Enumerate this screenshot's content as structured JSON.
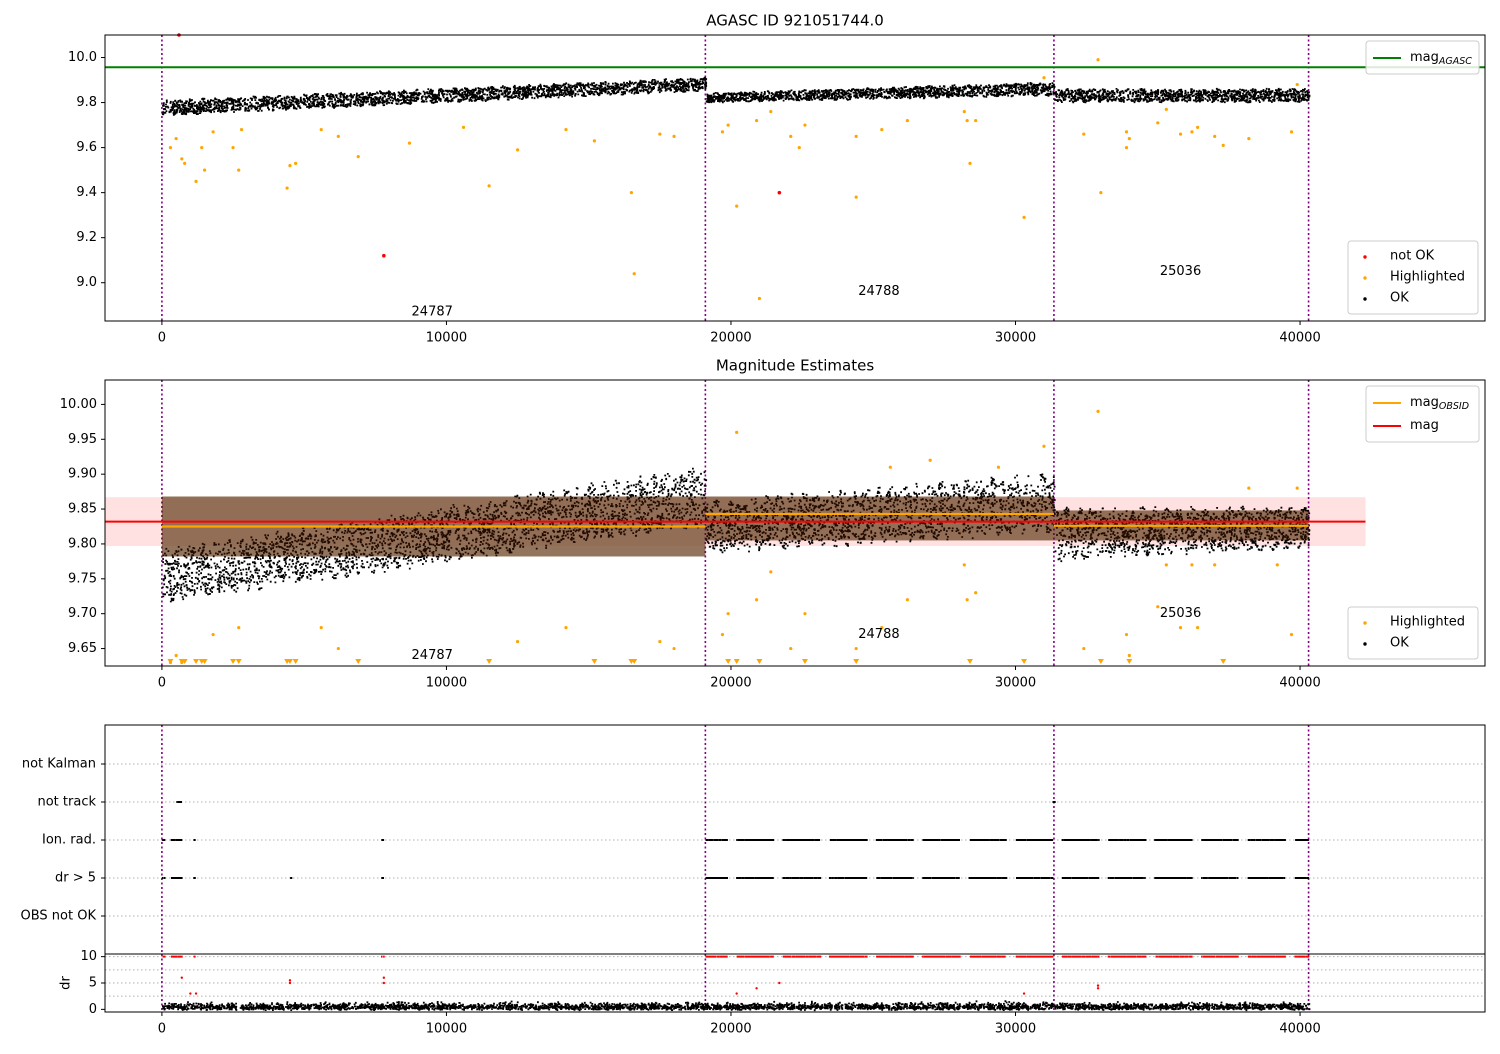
{
  "chart_data": [
    {
      "type": "scatter",
      "title": "AGASC ID 921051744.0",
      "xlim": [
        -2000,
        46500
      ],
      "ylim": [
        8.83,
        10.1
      ],
      "xticks": [
        0,
        10000,
        20000,
        30000,
        40000
      ],
      "xtick_labels": [
        "0",
        "10000",
        "20000",
        "30000",
        "40000"
      ],
      "yticks": [
        9.0,
        9.2,
        9.4,
        9.6,
        9.8,
        10.0
      ],
      "ytick_labels": [
        "9.0",
        "9.2",
        "9.4",
        "9.6",
        "9.8",
        "10.0"
      ],
      "grid": false,
      "obs_boundaries": [
        0,
        19100,
        31350,
        40300
      ],
      "obsid_labels": [
        {
          "text": "24787",
          "x": 9500,
          "y": 8.87
        },
        {
          "text": "24788",
          "x": 25200,
          "y": 8.96
        },
        {
          "text": "25036",
          "x": 35800,
          "y": 9.05
        }
      ],
      "mag_agasc": 9.957,
      "ok_band": [
        {
          "x0": 0,
          "x1": 19100,
          "y0": 9.74,
          "y1": 9.82,
          "y2": 9.85,
          "y3": 9.92
        },
        {
          "x0": 19100,
          "x1": 31350,
          "y0": 9.8,
          "y1": 9.85,
          "y2": 9.83,
          "y3": 9.9
        },
        {
          "x0": 31350,
          "x1": 40300,
          "y0": 9.8,
          "y1": 9.87,
          "y2": 9.8,
          "y3": 9.87
        }
      ],
      "highlighted": [
        [
          300,
          9.6
        ],
        [
          500,
          9.64
        ],
        [
          700,
          9.55
        ],
        [
          800,
          9.53
        ],
        [
          1200,
          9.45
        ],
        [
          1400,
          9.6
        ],
        [
          1500,
          9.5
        ],
        [
          1800,
          9.67
        ],
        [
          2500,
          9.6
        ],
        [
          2700,
          9.5
        ],
        [
          2800,
          9.68
        ],
        [
          4400,
          9.42
        ],
        [
          4500,
          9.52
        ],
        [
          4700,
          9.53
        ],
        [
          5600,
          9.68
        ],
        [
          6200,
          9.65
        ],
        [
          6900,
          9.56
        ],
        [
          8700,
          9.62
        ],
        [
          10600,
          9.69
        ],
        [
          11500,
          9.43
        ],
        [
          12500,
          9.59
        ],
        [
          14200,
          9.68
        ],
        [
          15200,
          9.63
        ],
        [
          16500,
          9.4
        ],
        [
          16600,
          9.04
        ],
        [
          17500,
          9.66
        ],
        [
          18000,
          9.65
        ],
        [
          19700,
          9.67
        ],
        [
          19900,
          9.7
        ],
        [
          20200,
          9.34
        ],
        [
          20900,
          9.72
        ],
        [
          21000,
          8.93
        ],
        [
          21400,
          9.76
        ],
        [
          22100,
          9.65
        ],
        [
          22400,
          9.6
        ],
        [
          22600,
          9.7
        ],
        [
          24400,
          9.38
        ],
        [
          24400,
          9.65
        ],
        [
          25300,
          9.68
        ],
        [
          26200,
          9.72
        ],
        [
          28200,
          9.76
        ],
        [
          28300,
          9.72
        ],
        [
          28400,
          9.53
        ],
        [
          28600,
          9.72
        ],
        [
          30300,
          9.29
        ],
        [
          31000,
          9.91
        ],
        [
          32400,
          9.66
        ],
        [
          32900,
          9.99
        ],
        [
          33000,
          9.4
        ],
        [
          33900,
          9.67
        ],
        [
          33900,
          9.6
        ],
        [
          34000,
          9.64
        ],
        [
          35000,
          9.71
        ],
        [
          35300,
          9.77
        ],
        [
          35800,
          9.66
        ],
        [
          36200,
          9.67
        ],
        [
          36400,
          9.69
        ],
        [
          37000,
          9.65
        ],
        [
          37300,
          9.61
        ],
        [
          38200,
          9.64
        ],
        [
          39700,
          9.67
        ],
        [
          39900,
          9.88
        ]
      ],
      "not_ok": [
        [
          600,
          10.1
        ],
        [
          7800,
          9.12
        ],
        [
          21700,
          9.4
        ]
      ],
      "series": [
        {
          "name": "mag_AGASC",
          "color": "#008000"
        }
      ],
      "legend_upper": {
        "position": "upper right",
        "entries": [
          {
            "label_main": "mag",
            "label_sub": "AGASC",
            "color": "#008000",
            "kind": "line"
          }
        ]
      },
      "legend_lower": {
        "position": "lower right",
        "entries": [
          {
            "label": "not OK",
            "color": "#ff0000",
            "kind": "dot"
          },
          {
            "label": "Highlighted",
            "color": "#ffa500",
            "kind": "dot"
          },
          {
            "label": "OK",
            "color": "#000000",
            "kind": "dot"
          }
        ]
      }
    },
    {
      "type": "scatter",
      "title": "Magnitude Estimates",
      "xlim": [
        -2000,
        46500
      ],
      "ylim": [
        9.625,
        10.035
      ],
      "xticks": [
        0,
        10000,
        20000,
        30000,
        40000
      ],
      "xtick_labels": [
        "0",
        "10000",
        "20000",
        "30000",
        "40000"
      ],
      "yticks": [
        9.65,
        9.7,
        9.75,
        9.8,
        9.85,
        9.9,
        9.95,
        10.0
      ],
      "ytick_labels": [
        "9.65",
        "9.70",
        "9.75",
        "9.80",
        "9.85",
        "9.90",
        "9.95",
        "10.00"
      ],
      "grid": false,
      "obs_boundaries": [
        0,
        19100,
        31350,
        40300
      ],
      "obsid_labels": [
        {
          "text": "24787",
          "x": 9500,
          "y": 9.64
        },
        {
          "text": "24788",
          "x": 25200,
          "y": 9.67
        },
        {
          "text": "25036",
          "x": 35800,
          "y": 9.7
        }
      ],
      "mag": 9.832,
      "mag_band": [
        9.797,
        9.867
      ],
      "mag_extent": [
        -2000,
        42300
      ],
      "mag_obsid": [
        {
          "x0": 0,
          "x1": 19100,
          "value": 9.825,
          "band": [
            9.782,
            9.868
          ]
        },
        {
          "x0": 19100,
          "x1": 31350,
          "value": 9.843,
          "band": [
            9.805,
            9.868
          ]
        },
        {
          "x0": 31350,
          "x1": 40300,
          "value": 9.826,
          "band": [
            9.805,
            9.848
          ]
        }
      ],
      "ok_band": [
        {
          "x0": 0,
          "x1": 19100,
          "y0": 9.71,
          "y1": 9.8,
          "y2": 9.82,
          "y3": 9.92
        },
        {
          "x0": 19100,
          "x1": 31350,
          "y0": 9.78,
          "y1": 9.87,
          "y2": 9.81,
          "y3": 9.91
        },
        {
          "x0": 31350,
          "x1": 40300,
          "y0": 9.77,
          "y1": 9.86,
          "y2": 9.79,
          "y3": 9.86
        }
      ],
      "highlighted": [
        [
          300,
          9.63
        ],
        [
          500,
          9.64
        ],
        [
          700,
          9.63
        ],
        [
          1800,
          9.67
        ],
        [
          2700,
          9.68
        ],
        [
          5600,
          9.68
        ],
        [
          6200,
          9.65
        ],
        [
          12500,
          9.66
        ],
        [
          14200,
          9.68
        ],
        [
          17500,
          9.66
        ],
        [
          18000,
          9.65
        ],
        [
          19700,
          9.67
        ],
        [
          19900,
          9.7
        ],
        [
          20200,
          9.96
        ],
        [
          20900,
          9.72
        ],
        [
          21400,
          9.76
        ],
        [
          22100,
          9.65
        ],
        [
          22600,
          9.7
        ],
        [
          24400,
          9.65
        ],
        [
          25300,
          9.68
        ],
        [
          25600,
          9.91
        ],
        [
          26200,
          9.72
        ],
        [
          27000,
          9.92
        ],
        [
          28200,
          9.77
        ],
        [
          28300,
          9.72
        ],
        [
          28600,
          9.73
        ],
        [
          29400,
          9.91
        ],
        [
          31000,
          9.94
        ],
        [
          32400,
          9.65
        ],
        [
          32900,
          9.99
        ],
        [
          33900,
          9.67
        ],
        [
          34000,
          9.64
        ],
        [
          35000,
          9.71
        ],
        [
          35300,
          9.77
        ],
        [
          35800,
          9.68
        ],
        [
          36200,
          9.77
        ],
        [
          36400,
          9.68
        ],
        [
          37000,
          9.77
        ],
        [
          38200,
          9.88
        ],
        [
          39200,
          9.77
        ],
        [
          39700,
          9.67
        ],
        [
          39900,
          9.88
        ]
      ],
      "clipped_markers_x": [
        300,
        700,
        800,
        1200,
        1400,
        1500,
        2500,
        2700,
        4400,
        4500,
        4700,
        6900,
        11500,
        15200,
        16500,
        16600,
        19900,
        20200,
        21000,
        22600,
        24400,
        28400,
        30300,
        33000,
        34000,
        37300
      ],
      "series": [
        {
          "name": "mag_OBSID",
          "color": "#ffa500"
        },
        {
          "name": "mag",
          "color": "#ff0000"
        }
      ],
      "legend_upper": {
        "position": "upper right",
        "entries": [
          {
            "label_main": "mag",
            "label_sub": "OBSID",
            "color": "#ffa500",
            "kind": "line"
          },
          {
            "label_main": "mag",
            "label_sub": "",
            "color": "#ff0000",
            "kind": "line"
          }
        ]
      },
      "legend_lower": {
        "position": "lower right",
        "entries": [
          {
            "label": "Highlighted",
            "color": "#ffa500",
            "kind": "dot"
          },
          {
            "label": "OK",
            "color": "#000000",
            "kind": "dot"
          }
        ]
      }
    },
    {
      "type": "scatter",
      "title": "",
      "xlim": [
        -2000,
        46500
      ],
      "xticks": [
        0,
        10000,
        20000,
        30000,
        40000
      ],
      "xtick_labels": [
        "0",
        "10000",
        "20000",
        "30000",
        "40000"
      ],
      "obs_boundaries": [
        0,
        19100,
        31350,
        40300
      ],
      "flag_categories": [
        "not Kalman",
        "not track",
        "Ion. rad.",
        "dr > 5",
        "OBS not OK"
      ],
      "flag_spans": {
        "not track": [
          [
            500,
            700
          ],
          [
            31300,
            31400
          ]
        ],
        "Ion. rad.": [
          [
            0,
            100
          ],
          [
            300,
            700
          ],
          [
            1100,
            1150
          ],
          [
            7700,
            7800
          ],
          [
            19100,
            31350
          ],
          [
            31350,
            40300
          ]
        ],
        "dr > 5": [
          [
            0,
            100
          ],
          [
            300,
            700
          ],
          [
            1100,
            1150
          ],
          [
            4500,
            4550
          ],
          [
            7700,
            7800
          ],
          [
            19100,
            31350
          ],
          [
            31350,
            40300
          ]
        ]
      },
      "dr": {
        "ylim": [
          -0.5,
          10.5
        ],
        "yticks": [
          0,
          5,
          10
        ],
        "ytick_labels": [
          "0",
          "5",
          "10"
        ],
        "ylabel": "dr",
        "typical_range": [
          0,
          2
        ],
        "capped_value": 10,
        "capped_ranges": [
          [
            0,
            100
          ],
          [
            300,
            700
          ],
          [
            1100,
            1150
          ],
          [
            7700,
            7800
          ],
          [
            19100,
            31350
          ],
          [
            31350,
            40300
          ]
        ],
        "outliers": [
          [
            700,
            6
          ],
          [
            1000,
            3
          ],
          [
            1200,
            3
          ],
          [
            4500,
            5
          ],
          [
            4500,
            5.5
          ],
          [
            7800,
            5
          ],
          [
            7800,
            6
          ],
          [
            20200,
            3
          ],
          [
            20900,
            4
          ],
          [
            21700,
            5
          ],
          [
            30300,
            3
          ],
          [
            32900,
            4
          ],
          [
            32900,
            4.5
          ]
        ]
      }
    }
  ]
}
